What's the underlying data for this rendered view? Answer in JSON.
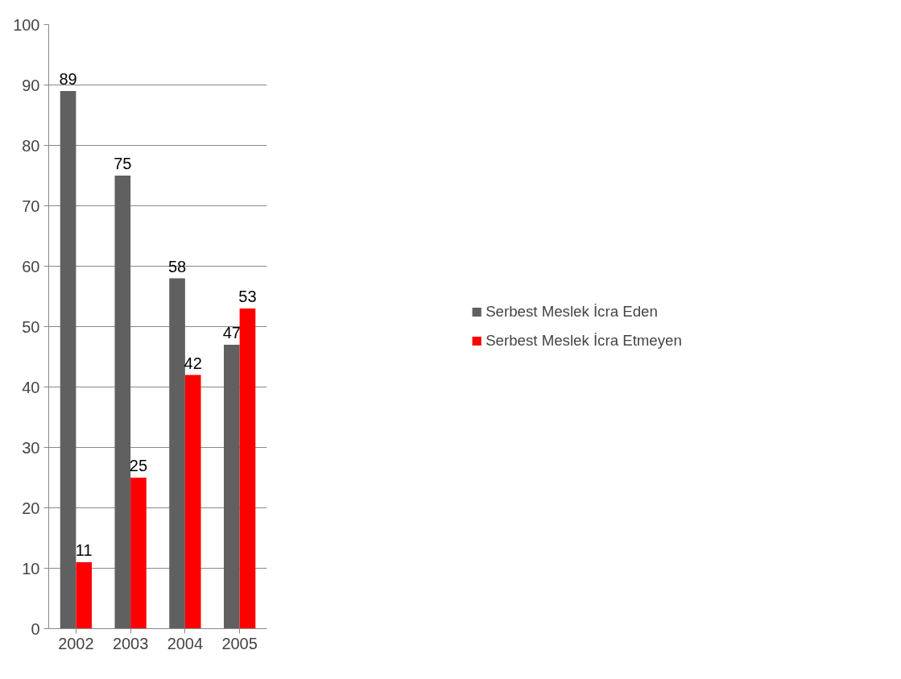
{
  "chart_data": {
    "type": "bar",
    "categories": [
      "2002",
      "2003",
      "2004",
      "2005"
    ],
    "series": [
      {
        "name": "Serbest Meslek İcra Eden",
        "color": "#606060",
        "values": [
          89,
          75,
          58,
          47
        ]
      },
      {
        "name": "Serbest Meslek İcra Etmeyen",
        "color": "#ff0000",
        "values": [
          11,
          25,
          42,
          53
        ]
      }
    ],
    "ylim": [
      0,
      100
    ],
    "yticks": [
      0,
      10,
      20,
      30,
      40,
      50,
      60,
      70,
      80,
      90,
      100
    ],
    "grid": "y",
    "legend": "right",
    "data_labels": true
  }
}
